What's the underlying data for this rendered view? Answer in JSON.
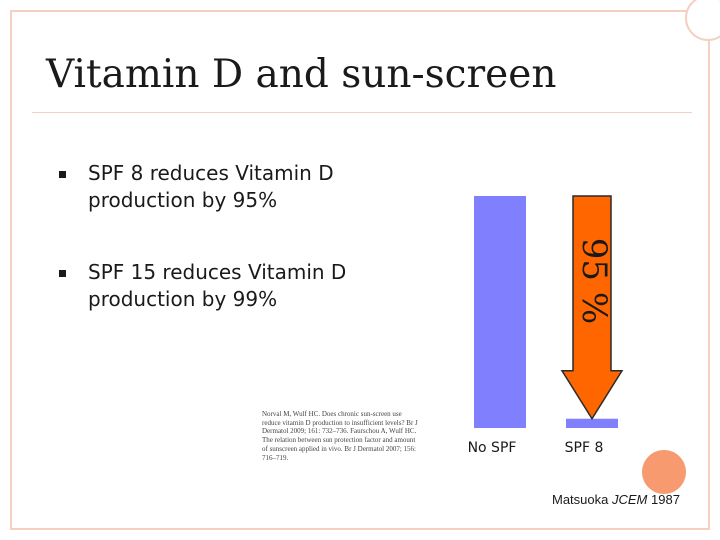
{
  "slide": {
    "title": "Vitamin D and sun-screen",
    "bullets": [
      "SPF 8 reduces Vitamin D production by 95%",
      "SPF 15 reduces Vitamin D production by 99%"
    ],
    "citation": "Norval M, Wulf HC. Does chronic sun-screen use reduce vitamin D production to insufficient levels? Br J Dermatol 2009; 161: 732–736. Faurschou A, Wulf HC. The relation between sun protection factor and amount of sunscreen applied in vivo. Br J Dermatol 2007; 156: 716–719.",
    "source_author": "Matsuoka",
    "source_journal": "JCEM",
    "source_year": "1987"
  },
  "colors": {
    "bar": "#8080ff",
    "arrow": "#ff6600",
    "frame": "#f4cfc2",
    "accent_circle": "#f79a6f"
  },
  "chart_data": {
    "type": "bar",
    "categories": [
      "No SPF",
      "SPF 8"
    ],
    "values": [
      100,
      4
    ],
    "ylim": [
      0,
      100
    ],
    "annotations": [
      {
        "text": "95 %",
        "from_category": "No SPF",
        "to_category": "SPF 8",
        "kind": "reduction-arrow"
      }
    ],
    "grid": false,
    "legend": "none"
  }
}
